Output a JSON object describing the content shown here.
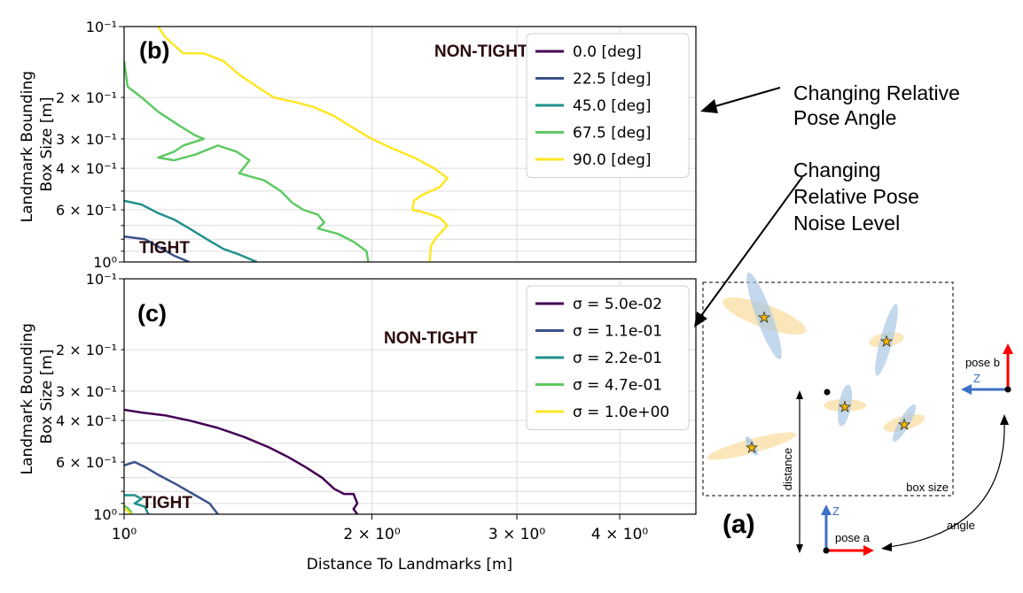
{
  "chart_data": [
    {
      "type": "line",
      "panel_label": "(b)",
      "ylabel": "Landmark Bounding\nBox Size [m]",
      "xlabel": "",
      "xscale": "log",
      "yscale": "log",
      "xlim": [
        1.0,
        4.95
      ],
      "ylim": [
        1.0,
        0.1
      ],
      "y_inverted": true,
      "grid": true,
      "y_tick_labels": [
        "10⁻¹",
        "2 × 10⁻¹",
        "3 × 10⁻¹",
        "4 × 10⁻¹",
        "6 × 10⁻¹",
        "10⁰"
      ],
      "region_labels": {
        "upper": "NON-TIGHT",
        "lower": "TIGHT"
      },
      "legend_position": "top-right",
      "series": [
        {
          "name": "0.0 [deg]",
          "color": "#440154",
          "points": []
        },
        {
          "name": "22.5 [deg]",
          "color": "#3b528b",
          "points": [
            [
              1.0,
              0.78
            ],
            [
              1.06,
              0.8
            ],
            [
              1.1,
              0.86
            ],
            [
              1.15,
              0.94
            ],
            [
              1.2,
              1.0
            ]
          ]
        },
        {
          "name": "45.0 [deg]",
          "color": "#21918c",
          "points": [
            [
              1.0,
              0.55
            ],
            [
              1.05,
              0.57
            ],
            [
              1.1,
              0.62
            ],
            [
              1.15,
              0.66
            ],
            [
              1.2,
              0.72
            ],
            [
              1.26,
              0.8
            ],
            [
              1.32,
              0.88
            ],
            [
              1.38,
              0.93
            ],
            [
              1.45,
              1.0
            ]
          ]
        },
        {
          "name": "67.5 [deg]",
          "color": "#5ec962",
          "points": [
            [
              1.0,
              0.14
            ],
            [
              1.01,
              0.18
            ],
            [
              1.05,
              0.2
            ],
            [
              1.1,
              0.23
            ],
            [
              1.16,
              0.26
            ],
            [
              1.22,
              0.29
            ],
            [
              1.25,
              0.3
            ],
            [
              1.18,
              0.32
            ],
            [
              1.15,
              0.34
            ],
            [
              1.1,
              0.36
            ],
            [
              1.15,
              0.37
            ],
            [
              1.22,
              0.35
            ],
            [
              1.3,
              0.32
            ],
            [
              1.37,
              0.34
            ],
            [
              1.42,
              0.37
            ],
            [
              1.38,
              0.42
            ],
            [
              1.48,
              0.45
            ],
            [
              1.55,
              0.5
            ],
            [
              1.6,
              0.56
            ],
            [
              1.65,
              0.6
            ],
            [
              1.72,
              0.63
            ],
            [
              1.75,
              0.68
            ],
            [
              1.72,
              0.72
            ],
            [
              1.82,
              0.76
            ],
            [
              1.9,
              0.82
            ],
            [
              1.97,
              0.9
            ],
            [
              1.98,
              1.0
            ]
          ]
        },
        {
          "name": "90.0 [deg]",
          "color": "#fde725",
          "points": [
            [
              1.1,
              0.1
            ],
            [
              1.12,
              0.11
            ],
            [
              1.15,
              0.12
            ],
            [
              1.18,
              0.13
            ],
            [
              1.25,
              0.13
            ],
            [
              1.32,
              0.14
            ],
            [
              1.38,
              0.16
            ],
            [
              1.45,
              0.18
            ],
            [
              1.52,
              0.2
            ],
            [
              1.62,
              0.21
            ],
            [
              1.7,
              0.22
            ],
            [
              1.8,
              0.24
            ],
            [
              1.9,
              0.27
            ],
            [
              2.0,
              0.3
            ],
            [
              2.12,
              0.33
            ],
            [
              2.25,
              0.36
            ],
            [
              2.38,
              0.4
            ],
            [
              2.47,
              0.44
            ],
            [
              2.42,
              0.48
            ],
            [
              2.3,
              0.52
            ],
            [
              2.25,
              0.55
            ],
            [
              2.24,
              0.6
            ],
            [
              2.33,
              0.62
            ],
            [
              2.42,
              0.65
            ],
            [
              2.47,
              0.7
            ],
            [
              2.4,
              0.78
            ],
            [
              2.36,
              0.85
            ],
            [
              2.35,
              1.0
            ]
          ]
        }
      ]
    },
    {
      "type": "line",
      "panel_label": "(c)",
      "ylabel": "Landmark Bounding\nBox Size [m]",
      "xlabel": "Distance To Landmarks [m]",
      "xscale": "log",
      "yscale": "log",
      "xlim": [
        1.0,
        4.95
      ],
      "ylim": [
        1.0,
        0.1
      ],
      "y_inverted": true,
      "grid": true,
      "x_tick_labels": [
        "10⁰",
        "2 × 10⁰",
        "3 × 10⁰",
        "4 × 10⁰"
      ],
      "y_tick_labels": [
        "10⁻¹",
        "2 × 10⁻¹",
        "3 × 10⁻¹",
        "4 × 10⁻¹",
        "6 × 10⁻¹",
        "10⁰"
      ],
      "region_labels": {
        "upper": "NON-TIGHT",
        "lower": "TIGHT"
      },
      "legend_position": "top-right",
      "series": [
        {
          "name": "σ = 5.0e-02",
          "color": "#440154",
          "points": [
            [
              1.0,
              0.36
            ],
            [
              1.05,
              0.37
            ],
            [
              1.12,
              0.38
            ],
            [
              1.2,
              0.4
            ],
            [
              1.3,
              0.43
            ],
            [
              1.4,
              0.47
            ],
            [
              1.5,
              0.52
            ],
            [
              1.58,
              0.57
            ],
            [
              1.66,
              0.63
            ],
            [
              1.74,
              0.7
            ],
            [
              1.8,
              0.78
            ],
            [
              1.85,
              0.82
            ],
            [
              1.9,
              0.82
            ],
            [
              1.92,
              0.9
            ],
            [
              1.9,
              0.95
            ],
            [
              1.92,
              1.0
            ]
          ]
        },
        {
          "name": "σ = 1.1e-01",
          "color": "#3b528b",
          "points": [
            [
              1.0,
              0.62
            ],
            [
              1.03,
              0.6
            ],
            [
              1.06,
              0.63
            ],
            [
              1.1,
              0.68
            ],
            [
              1.16,
              0.75
            ],
            [
              1.22,
              0.83
            ],
            [
              1.27,
              0.9
            ],
            [
              1.3,
              1.0
            ]
          ]
        },
        {
          "name": "σ = 2.2e-01",
          "color": "#21918c",
          "points": [
            [
              1.0,
              0.83
            ],
            [
              1.03,
              0.83
            ],
            [
              1.05,
              0.86
            ],
            [
              1.03,
              0.9
            ],
            [
              1.06,
              0.93
            ],
            [
              1.07,
              1.0
            ]
          ]
        },
        {
          "name": "σ = 4.7e-01",
          "color": "#5ec962",
          "points": [
            [
              1.0,
              0.92
            ],
            [
              1.01,
              0.94
            ],
            [
              1.02,
              0.98
            ],
            [
              1.02,
              1.0
            ]
          ]
        },
        {
          "name": "σ = 1.0e+00",
          "color": "#fde725",
          "points": [
            [
              1.0,
              0.94
            ],
            [
              1.01,
              0.97
            ],
            [
              1.02,
              1.0
            ]
          ]
        }
      ]
    }
  ],
  "annotations": {
    "angle_callout": "Changing Relative\nPose Angle",
    "noise_callout": "Changing\nRelative Pose\nNoise Level"
  },
  "schematic": {
    "label": "(a)",
    "box_label": "box size",
    "distance_label": "distance",
    "angle_label": "angle",
    "pose_a_label": "pose a",
    "pose_b_label": "pose b",
    "z_label_a": "Z",
    "z_label_b": "Z",
    "ellipse_color": "#f7d58a",
    "ellipse_color_blue": "#a9c7e6",
    "star_color": "#f2b705",
    "axis_red": "#ff0000",
    "axis_blue": "#3d6fc7"
  }
}
